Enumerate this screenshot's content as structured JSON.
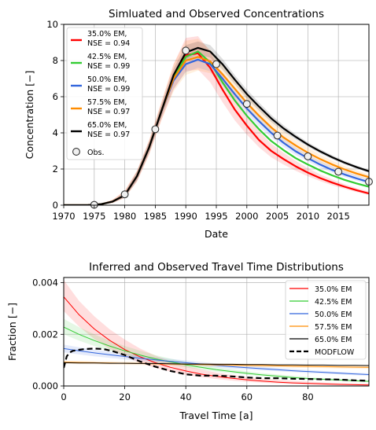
{
  "chart_data": [
    {
      "type": "line",
      "title": "Simluated and Observed Concentrations",
      "xlabel": "Date",
      "ylabel": "Concentration [−]",
      "xlim": [
        1970,
        2020
      ],
      "ylim": [
        0,
        10
      ],
      "xticks": [
        1970,
        1975,
        1980,
        1985,
        1990,
        1995,
        2000,
        2005,
        2010,
        2015
      ],
      "yticks": [
        0,
        2,
        4,
        6,
        8,
        10
      ],
      "grid": true,
      "legend_position": "upper-left",
      "x": [
        1970,
        1972,
        1974,
        1976,
        1978,
        1980,
        1982,
        1984,
        1986,
        1988,
        1990,
        1992,
        1994,
        1996,
        1998,
        2000,
        2002,
        2004,
        2006,
        2008,
        2010,
        2012,
        2014,
        2016,
        2018,
        2020
      ],
      "series": [
        {
          "name": "35.0% EM",
          "nse_label": "NSE = 0.94",
          "color": "#ff0000",
          "values": [
            0,
            0,
            0.01,
            0.05,
            0.2,
            0.55,
            1.6,
            3.2,
            5.2,
            7.1,
            8.3,
            8.4,
            7.6,
            6.4,
            5.3,
            4.4,
            3.6,
            3.0,
            2.55,
            2.15,
            1.8,
            1.5,
            1.25,
            1.02,
            0.82,
            0.65
          ],
          "band": [
            0,
            0,
            0.02,
            0.08,
            0.3,
            0.8,
            1.9,
            3.6,
            5.7,
            7.8,
            9.25,
            9.35,
            8.5,
            7.2,
            6.0,
            5.0,
            4.1,
            3.4,
            2.9,
            2.45,
            2.05,
            1.7,
            1.42,
            1.16,
            0.94,
            0.75
          ],
          "band_low": [
            0,
            0,
            0,
            0.03,
            0.12,
            0.4,
            1.3,
            2.8,
            4.7,
            6.4,
            7.4,
            7.5,
            6.8,
            5.7,
            4.7,
            3.9,
            3.2,
            2.65,
            2.25,
            1.9,
            1.6,
            1.33,
            1.1,
            0.9,
            0.72,
            0.56
          ]
        },
        {
          "name": "42.5% EM",
          "nse_label": "NSE = 0.99",
          "color": "#33cc33",
          "values": [
            0,
            0,
            0.01,
            0.05,
            0.2,
            0.55,
            1.6,
            3.2,
            5.2,
            7.1,
            8.2,
            8.5,
            7.9,
            6.8,
            5.8,
            4.95,
            4.2,
            3.55,
            3.05,
            2.6,
            2.25,
            1.92,
            1.65,
            1.4,
            1.2,
            1.02
          ]
        },
        {
          "name": "50.0% EM",
          "nse_label": "NSE = 0.99",
          "color": "#3366dd",
          "values": [
            0,
            0,
            0.01,
            0.05,
            0.2,
            0.55,
            1.6,
            3.2,
            5.2,
            6.9,
            7.8,
            8.05,
            7.8,
            7.0,
            6.15,
            5.35,
            4.65,
            4.0,
            3.45,
            2.98,
            2.6,
            2.25,
            1.95,
            1.7,
            1.48,
            1.28
          ],
          "band": [
            0,
            0,
            0.02,
            0.07,
            0.26,
            0.7,
            1.8,
            3.45,
            5.45,
            7.2,
            8.15,
            8.3,
            8.05,
            7.25,
            6.4,
            5.6,
            4.9,
            4.25,
            3.7,
            3.2,
            2.8,
            2.45,
            2.15,
            1.88,
            1.65,
            1.45
          ],
          "band_low": [
            0,
            0,
            0,
            0.03,
            0.13,
            0.42,
            1.35,
            2.9,
            4.85,
            6.45,
            7.35,
            7.6,
            7.4,
            6.6,
            5.8,
            5.05,
            4.35,
            3.75,
            3.22,
            2.78,
            2.42,
            2.08,
            1.8,
            1.56,
            1.35,
            1.16
          ]
        },
        {
          "name": "57.5% EM",
          "nse_label": "NSE = 0.97",
          "color": "#ff8c00",
          "values": [
            0,
            0,
            0.01,
            0.05,
            0.2,
            0.55,
            1.6,
            3.2,
            5.2,
            7.0,
            8.0,
            8.2,
            7.95,
            7.25,
            6.45,
            5.65,
            4.95,
            4.3,
            3.75,
            3.3,
            2.9,
            2.55,
            2.25,
            1.98,
            1.75,
            1.55
          ],
          "band": [
            0,
            0,
            0.02,
            0.08,
            0.3,
            0.8,
            1.9,
            3.6,
            5.7,
            7.8,
            9.1,
            9.2,
            8.6,
            7.8,
            6.95,
            6.1,
            5.35,
            4.7,
            4.1,
            3.6,
            3.18,
            2.8,
            2.46,
            2.17,
            1.92,
            1.7
          ],
          "band_low": [
            0,
            0,
            0,
            0.03,
            0.12,
            0.4,
            1.3,
            2.8,
            4.7,
            6.3,
            7.2,
            7.45,
            7.3,
            6.7,
            5.95,
            5.2,
            4.55,
            3.95,
            3.44,
            3.02,
            2.65,
            2.32,
            2.05,
            1.8,
            1.59,
            1.4
          ]
        },
        {
          "name": "65.0% EM",
          "nse_label": "NSE = 0.97",
          "color": "#000000",
          "values": [
            0,
            0,
            0.01,
            0.05,
            0.2,
            0.55,
            1.6,
            3.2,
            5.2,
            7.2,
            8.45,
            8.7,
            8.5,
            7.8,
            6.95,
            6.15,
            5.45,
            4.8,
            4.25,
            3.78,
            3.35,
            2.98,
            2.65,
            2.35,
            2.1,
            1.88
          ],
          "band": [
            0,
            0,
            0.02,
            0.07,
            0.26,
            0.7,
            1.85,
            3.5,
            5.55,
            7.55,
            8.85,
            9.05,
            8.85,
            8.1,
            7.2,
            6.4,
            5.68,
            5.0,
            4.42,
            3.92,
            3.48,
            3.1,
            2.76,
            2.45,
            2.19,
            1.96
          ],
          "band_low": [
            0,
            0,
            0,
            0.03,
            0.14,
            0.42,
            1.38,
            2.92,
            4.88,
            6.85,
            8.05,
            8.35,
            8.15,
            7.5,
            6.7,
            5.9,
            5.22,
            4.6,
            4.08,
            3.63,
            3.22,
            2.86,
            2.54,
            2.25,
            2.01,
            1.8
          ]
        }
      ],
      "observed": {
        "name": "Obs.",
        "x": [
          1975,
          1980,
          1985,
          1990,
          1995,
          2000,
          2005,
          2010,
          2015,
          2020
        ],
        "y": [
          0.02,
          0.6,
          4.2,
          8.55,
          7.8,
          5.6,
          3.85,
          2.7,
          1.85,
          1.3
        ]
      }
    },
    {
      "type": "line",
      "title": "Inferred and Observed Travel Time Distributions",
      "xlabel": "Travel Time [a]",
      "ylabel": "Fraction [−]",
      "xlim": [
        0,
        100
      ],
      "ylim": [
        0,
        0.0042
      ],
      "xticks": [
        0,
        20,
        40,
        60,
        80
      ],
      "yticks": [
        0,
        0.002,
        0.004
      ],
      "ytick_labels": [
        "0.000",
        "0.002",
        "0.004"
      ],
      "grid": true,
      "legend_position": "upper-right",
      "x": [
        0,
        5,
        10,
        15,
        20,
        25,
        30,
        35,
        40,
        45,
        50,
        55,
        60,
        65,
        70,
        75,
        80,
        85,
        90,
        95,
        100
      ],
      "series": [
        {
          "name": "35.0% EM",
          "color": "#ff0000",
          "values": [
            0.00345,
            0.00276,
            0.00221,
            0.00177,
            0.00141,
            0.00113,
            0.0009,
            0.00072,
            0.00058,
            0.00046,
            0.00037,
            0.0003,
            0.00024,
            0.00019,
            0.00015,
            0.00012,
            0.0001,
            8e-05,
            6e-05,
            5e-05,
            4e-05
          ],
          "band": [
            0.0041,
            0.0033,
            0.0027,
            0.0022,
            0.0018,
            0.00145,
            0.00118,
            0.00096,
            0.00078,
            0.00064,
            0.00052,
            0.00043,
            0.00035,
            0.00029,
            0.00024,
            0.0002,
            0.00017,
            0.00014,
            0.00012,
            0.0001,
            9e-05
          ],
          "band_low": [
            0.0029,
            0.0023,
            0.00182,
            0.00144,
            0.00113,
            0.00089,
            0.0007,
            0.00055,
            0.00043,
            0.00034,
            0.00027,
            0.00021,
            0.00016,
            0.00013,
            0.0001,
            8e-05,
            6e-05,
            5e-05,
            4e-05,
            3e-05,
            2e-05
          ]
        },
        {
          "name": "42.5% EM",
          "color": "#33cc33",
          "values": [
            0.00228,
            0.002,
            0.00176,
            0.00155,
            0.00136,
            0.0012,
            0.00105,
            0.00093,
            0.00082,
            0.00072,
            0.00063,
            0.00056,
            0.00049,
            0.00043,
            0.00038,
            0.00033,
            0.00029,
            0.00026,
            0.00023,
            0.0002,
            0.00018
          ],
          "band": [
            0.0026,
            0.00228,
            0.002,
            0.00176,
            0.00155,
            0.00137,
            0.0012,
            0.00106,
            0.00094,
            0.00083,
            0.00073,
            0.00065,
            0.00057,
            0.0005,
            0.00045,
            0.0004,
            0.00035,
            0.00031,
            0.00028,
            0.00025,
            0.00022
          ],
          "band_low": [
            0.002,
            0.00176,
            0.00155,
            0.00137,
            0.0012,
            0.00106,
            0.00093,
            0.00082,
            0.00072,
            0.00063,
            0.00055,
            0.00049,
            0.00043,
            0.00037,
            0.00033,
            0.00029,
            0.00025,
            0.00022,
            0.00019,
            0.00017,
            0.00015
          ]
        },
        {
          "name": "50.0% EM",
          "color": "#3366dd",
          "values": [
            0.00145,
            0.00136,
            0.00128,
            0.00121,
            0.00114,
            0.00107,
            0.00101,
            0.00095,
            0.0009,
            0.00085,
            0.0008,
            0.00075,
            0.00071,
            0.00067,
            0.00063,
            0.00059,
            0.00056,
            0.00053,
            0.0005,
            0.00047,
            0.00044
          ],
          "band": [
            0.0016,
            0.0015,
            0.00141,
            0.00133,
            0.00125,
            0.00118,
            0.00111,
            0.00105,
            0.00099,
            0.00093,
            0.00088,
            0.00083,
            0.00078,
            0.00074,
            0.0007,
            0.00066,
            0.00062,
            0.00058,
            0.00055,
            0.00052,
            0.00049
          ],
          "band_low": [
            0.0013,
            0.00122,
            0.00115,
            0.00109,
            0.00103,
            0.00097,
            0.00091,
            0.00086,
            0.00081,
            0.00077,
            0.00072,
            0.00068,
            0.00064,
            0.0006,
            0.00057,
            0.00054,
            0.0005,
            0.00048,
            0.00045,
            0.00042,
            0.0004
          ]
        },
        {
          "name": "57.5% EM",
          "color": "#ff8c00",
          "values": [
            0.00092,
            0.00091,
            0.0009,
            0.00089,
            0.00088,
            0.00087,
            0.00086,
            0.00085,
            0.00084,
            0.00083,
            0.00082,
            0.00081,
            0.0008,
            0.00079,
            0.00078,
            0.00077,
            0.00076,
            0.00075,
            0.00074,
            0.00073,
            0.00072
          ],
          "band": [
            0.00098,
            0.00097,
            0.00096,
            0.00095,
            0.00094,
            0.00093,
            0.00092,
            0.00091,
            0.0009,
            0.00089,
            0.00088,
            0.00087,
            0.00086,
            0.00085,
            0.00084,
            0.00083,
            0.00082,
            0.00081,
            0.0008,
            0.00079,
            0.00078
          ],
          "band_low": [
            0.00086,
            0.00085,
            0.00084,
            0.00083,
            0.00082,
            0.00081,
            0.0008,
            0.00079,
            0.00078,
            0.00077,
            0.00076,
            0.00075,
            0.00074,
            0.00073,
            0.00072,
            0.00071,
            0.0007,
            0.00069,
            0.00068,
            0.00067,
            0.00066
          ]
        },
        {
          "name": "65.0% EM",
          "color": "#000000",
          "values": [
            0.0009,
            0.00089,
            0.00089,
            0.00088,
            0.00088,
            0.00087,
            0.00087,
            0.00086,
            0.00085,
            0.00085,
            0.00084,
            0.00084,
            0.00083,
            0.00083,
            0.00082,
            0.00082,
            0.00081,
            0.00081,
            0.0008,
            0.0008,
            0.00079
          ]
        }
      ],
      "reference": {
        "name": "MODFLOW",
        "color": "#000000",
        "x": [
          0,
          1,
          2,
          3,
          5,
          7,
          10,
          13,
          16,
          20,
          25,
          30,
          35,
          40,
          45,
          50,
          55,
          60,
          65,
          70,
          75,
          80,
          85,
          90,
          95,
          100
        ],
        "y": [
          0.0007,
          0.00115,
          0.0013,
          0.00136,
          0.0014,
          0.00143,
          0.00145,
          0.00143,
          0.00135,
          0.0012,
          0.00095,
          0.00075,
          0.00058,
          0.00045,
          0.0004,
          0.0004,
          0.00037,
          0.00033,
          0.0003,
          0.0003,
          0.00028,
          0.00027,
          0.00026,
          0.00025,
          0.00022,
          0.0002
        ]
      }
    }
  ]
}
